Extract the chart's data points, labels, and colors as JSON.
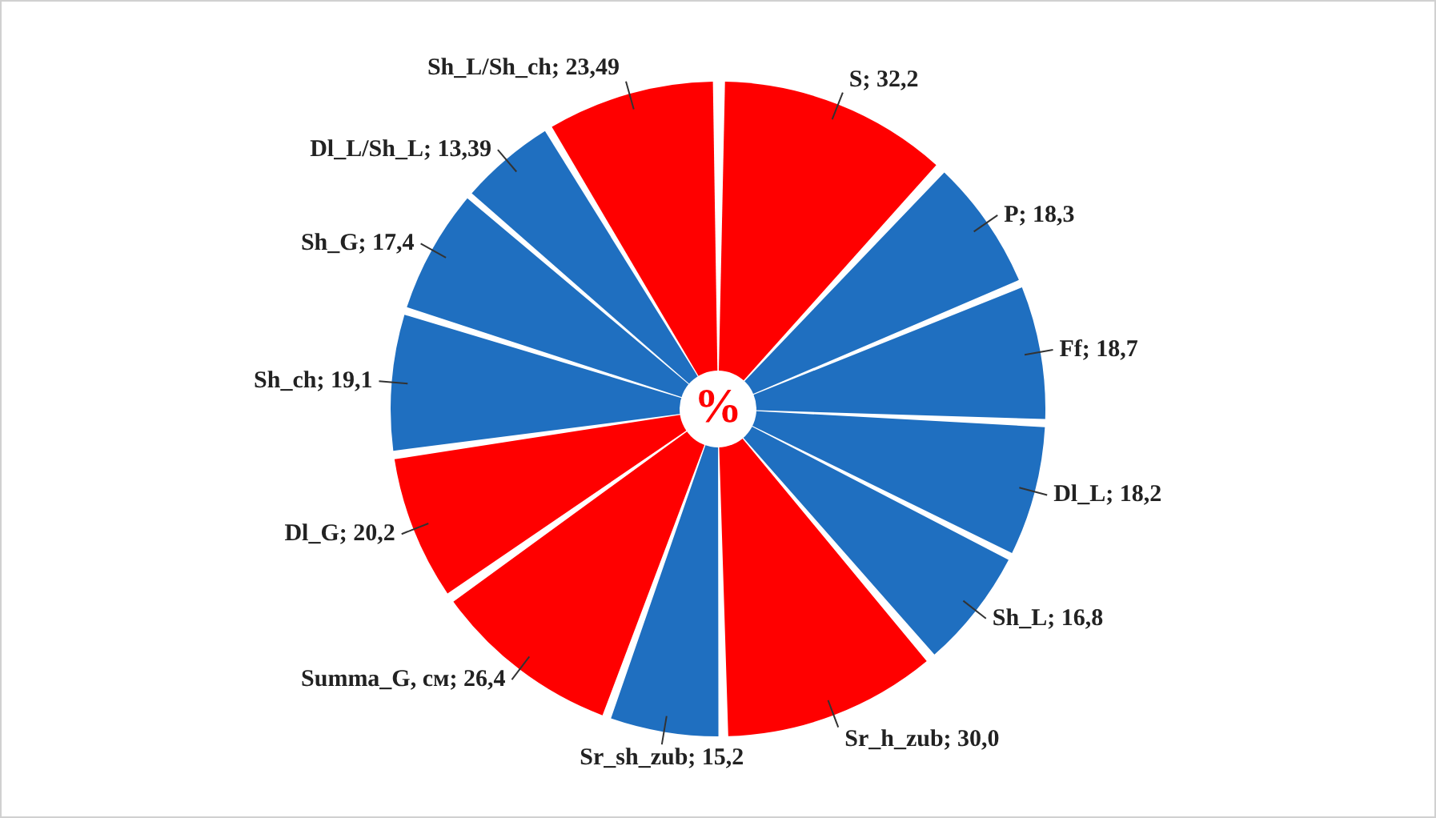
{
  "chart_data": {
    "type": "pie",
    "categories": [
      "S",
      "P",
      "Ff",
      "Dl_L",
      "Sh_L",
      "Sr_h_zub",
      "Sr_sh_zub",
      "Summa_G, см",
      "Dl_G",
      "Sh_ch",
      "Sh_G",
      "Dl_L/Sh_L",
      "Sh_L/Sh_ch"
    ],
    "values": [
      32.2,
      18.3,
      18.7,
      18.2,
      16.8,
      30.0,
      15.2,
      26.4,
      20.2,
      19.1,
      17.4,
      13.39,
      23.49
    ],
    "value_labels": [
      "32,2",
      "18,3",
      "18,7",
      "18,2",
      "16,8",
      "30,0",
      "15,2",
      "26,4",
      "20,2",
      "19,1",
      "17,4",
      "13,39",
      "23,49"
    ],
    "colors": [
      "#ff0000",
      "#1f6fc0",
      "#1f6fc0",
      "#1f6fc0",
      "#1f6fc0",
      "#ff0000",
      "#1f6fc0",
      "#ff0000",
      "#ff0000",
      "#1f6fc0",
      "#1f6fc0",
      "#1f6fc0",
      "#ff0000"
    ],
    "annotations": [
      "%"
    ],
    "legend": false
  }
}
